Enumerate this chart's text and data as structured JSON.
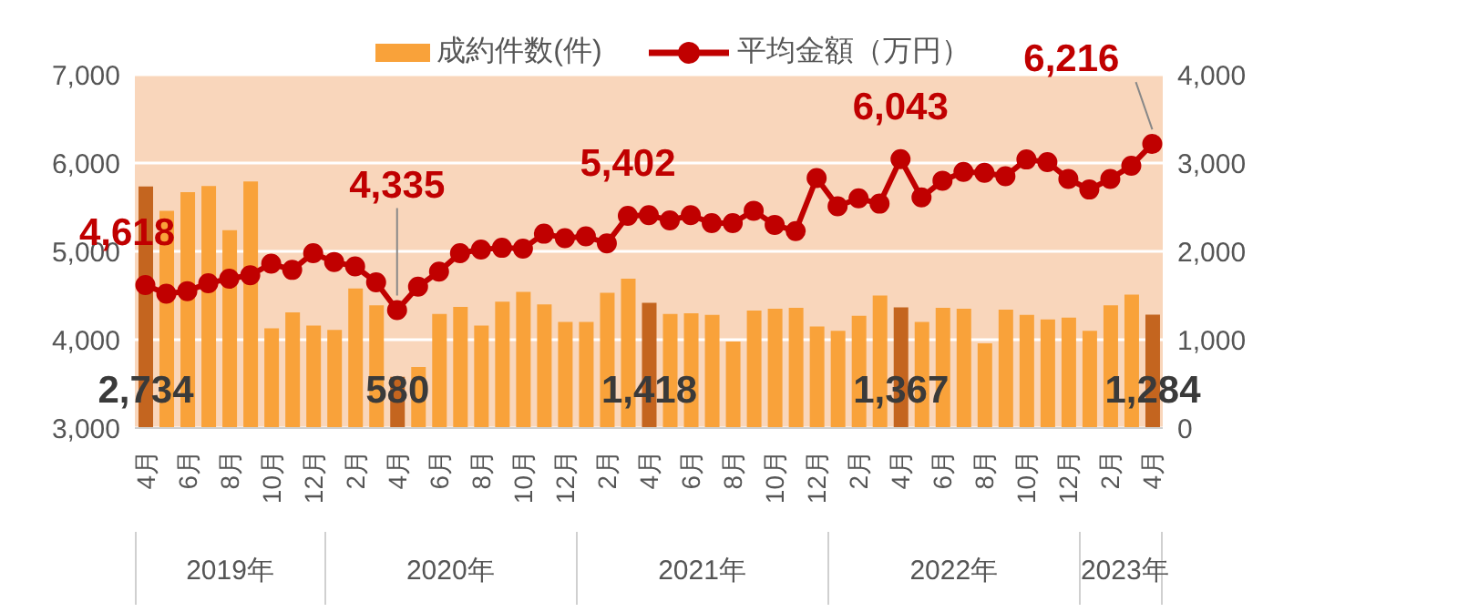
{
  "chart_data": {
    "type": "bar",
    "categories": [
      "4月",
      null,
      "6月",
      null,
      "8月",
      null,
      "10月",
      null,
      "12月",
      null,
      "2月",
      null,
      "4月",
      null,
      "6月",
      null,
      "8月",
      null,
      "10月",
      null,
      "12月",
      null,
      "2月",
      null,
      "4月",
      null,
      "6月",
      null,
      "8月",
      null,
      "10月",
      null,
      "12月",
      null,
      "2月",
      null,
      "4月",
      null,
      "6月",
      null,
      "8月",
      null,
      "10月",
      null,
      "12月",
      null,
      "2月",
      null,
      "4月"
    ],
    "series": [
      {
        "name": "成約件数(件)",
        "axis": "y2",
        "color": "#f9a23a",
        "colors": [
          "#c4651f",
          "#f9a23a",
          "#f9a23a",
          "#f9a23a",
          "#f9a23a",
          "#f9a23a",
          "#f9a23a",
          "#f9a23a",
          "#f9a23a",
          "#f9a23a",
          "#f9a23a",
          "#f9a23a",
          "#c4651f",
          "#f9a23a",
          "#f9a23a",
          "#f9a23a",
          "#f9a23a",
          "#f9a23a",
          "#f9a23a",
          "#f9a23a",
          "#f9a23a",
          "#f9a23a",
          "#f9a23a",
          "#f9a23a",
          "#c4651f",
          "#f9a23a",
          "#f9a23a",
          "#f9a23a",
          "#f9a23a",
          "#f9a23a",
          "#f9a23a",
          "#f9a23a",
          "#f9a23a",
          "#f9a23a",
          "#f9a23a",
          "#f9a23a",
          "#c4651f",
          "#f9a23a",
          "#f9a23a",
          "#f9a23a",
          "#f9a23a",
          "#f9a23a",
          "#f9a23a",
          "#f9a23a",
          "#f9a23a",
          "#f9a23a",
          "#f9a23a",
          "#f9a23a",
          "#c4651f"
        ],
        "values": [
          2734,
          2460,
          2670,
          2740,
          2240,
          2790,
          1130,
          1310,
          1160,
          1110,
          1580,
          1390,
          580,
          690,
          1290,
          1370,
          1160,
          1430,
          1540,
          1400,
          1200,
          1200,
          1530,
          1690,
          1418,
          1290,
          1300,
          1280,
          980,
          1330,
          1350,
          1360,
          1150,
          1100,
          1270,
          1500,
          1367,
          1200,
          1360,
          1350,
          960,
          1340,
          1280,
          1230,
          1250,
          1100,
          1390,
          1510,
          1284
        ],
        "value_labels": [
          "2,734",
          null,
          null,
          null,
          null,
          null,
          null,
          null,
          null,
          null,
          null,
          null,
          "580",
          null,
          null,
          null,
          null,
          null,
          null,
          null,
          null,
          null,
          null,
          null,
          "1,418",
          null,
          null,
          null,
          null,
          null,
          null,
          null,
          null,
          null,
          null,
          null,
          "1,367",
          null,
          null,
          null,
          null,
          null,
          null,
          null,
          null,
          null,
          null,
          null,
          "1,284"
        ]
      },
      {
        "name": "平均金額（万円）",
        "type": "line",
        "axis": "y",
        "color": "#c00000",
        "marker": "circle",
        "values": [
          4618,
          4520,
          4550,
          4640,
          4690,
          4730,
          4860,
          4790,
          4980,
          4880,
          4830,
          4650,
          4335,
          4600,
          4770,
          4980,
          5020,
          5040,
          5030,
          5200,
          5150,
          5170,
          5090,
          5402,
          5410,
          5350,
          5410,
          5320,
          5320,
          5460,
          5300,
          5230,
          5830,
          5510,
          5600,
          5540,
          6043,
          5610,
          5800,
          5900,
          5890,
          5850,
          6040,
          6010,
          5820,
          5700,
          5820,
          5970,
          6216
        ],
        "value_labels": [
          "4,618",
          null,
          null,
          null,
          null,
          null,
          null,
          null,
          null,
          null,
          null,
          null,
          "4,335",
          null,
          null,
          null,
          null,
          null,
          null,
          null,
          null,
          null,
          null,
          "5,402",
          null,
          null,
          null,
          null,
          null,
          null,
          null,
          null,
          null,
          null,
          null,
          null,
          "6,043",
          null,
          null,
          null,
          null,
          null,
          null,
          null,
          null,
          null,
          null,
          null,
          "6,216"
        ]
      }
    ],
    "ylim": [
      3000,
      7000
    ],
    "yticks": [
      {
        "value": 3000,
        "label": "3,000"
      },
      {
        "value": 4000,
        "label": "4,000"
      },
      {
        "value": 5000,
        "label": "5,000"
      },
      {
        "value": 6000,
        "label": "6,000"
      },
      {
        "value": 7000,
        "label": "7,000"
      }
    ],
    "y2lim": [
      0,
      4000
    ],
    "y2ticks": [
      0,
      {
        "value": 1000,
        "label": "1,000"
      },
      {
        "value": 2000,
        "label": "2,000"
      },
      {
        "value": 3000,
        "label": "3,000"
      },
      {
        "value": 4000,
        "label": "4,000"
      }
    ],
    "grid": "y",
    "legend": "top",
    "annotations": [
      "2019年",
      "2020年",
      "2021年",
      "2022年",
      "2023年"
    ]
  }
}
